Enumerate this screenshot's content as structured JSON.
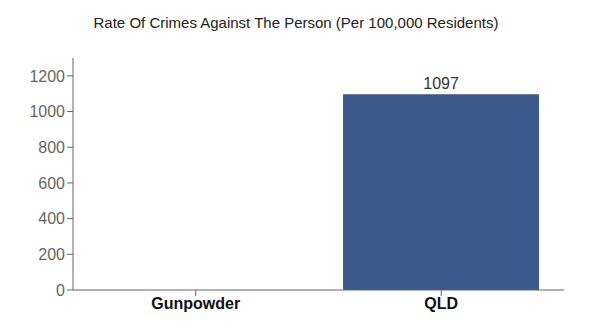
{
  "chart_data": {
    "type": "bar",
    "title": "Rate Of Crimes Against The Person (Per 100,000 Residents)",
    "categories": [
      "Gunpowder",
      "QLD"
    ],
    "values": [
      0,
      1097
    ],
    "colors": [
      "#3a5a8c",
      "#3a5a8c"
    ],
    "ylim": [
      0,
      1300
    ],
    "yticks": [
      0,
      200,
      400,
      600,
      800,
      1000,
      1200
    ],
    "grid": false,
    "data_labels": true
  }
}
